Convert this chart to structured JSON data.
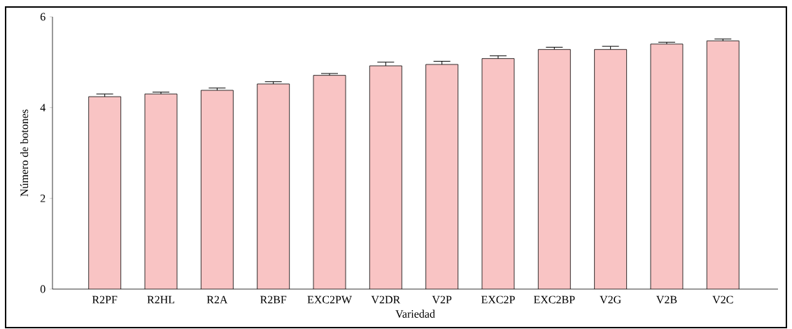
{
  "chart_data": {
    "type": "bar",
    "xlabel": "Variedad",
    "ylabel": "Número de botones",
    "categories": [
      "R2PF",
      "R2HL",
      "R2A",
      "R2BF",
      "EXC2PW",
      "V2DR",
      "V2P",
      "EXC2P",
      "EXC2BP",
      "V2G",
      "V2B",
      "V2C"
    ],
    "values": [
      4.24,
      4.3,
      4.38,
      4.52,
      4.71,
      4.92,
      4.95,
      5.08,
      5.28,
      5.28,
      5.4,
      5.47
    ],
    "errors": [
      0.06,
      0.04,
      0.05,
      0.05,
      0.04,
      0.08,
      0.07,
      0.06,
      0.05,
      0.07,
      0.04,
      0.04
    ],
    "color": "#f9c4c4",
    "ylim": [
      0,
      6
    ],
    "yticks": [
      0,
      2,
      4,
      6
    ],
    "grid": false
  }
}
